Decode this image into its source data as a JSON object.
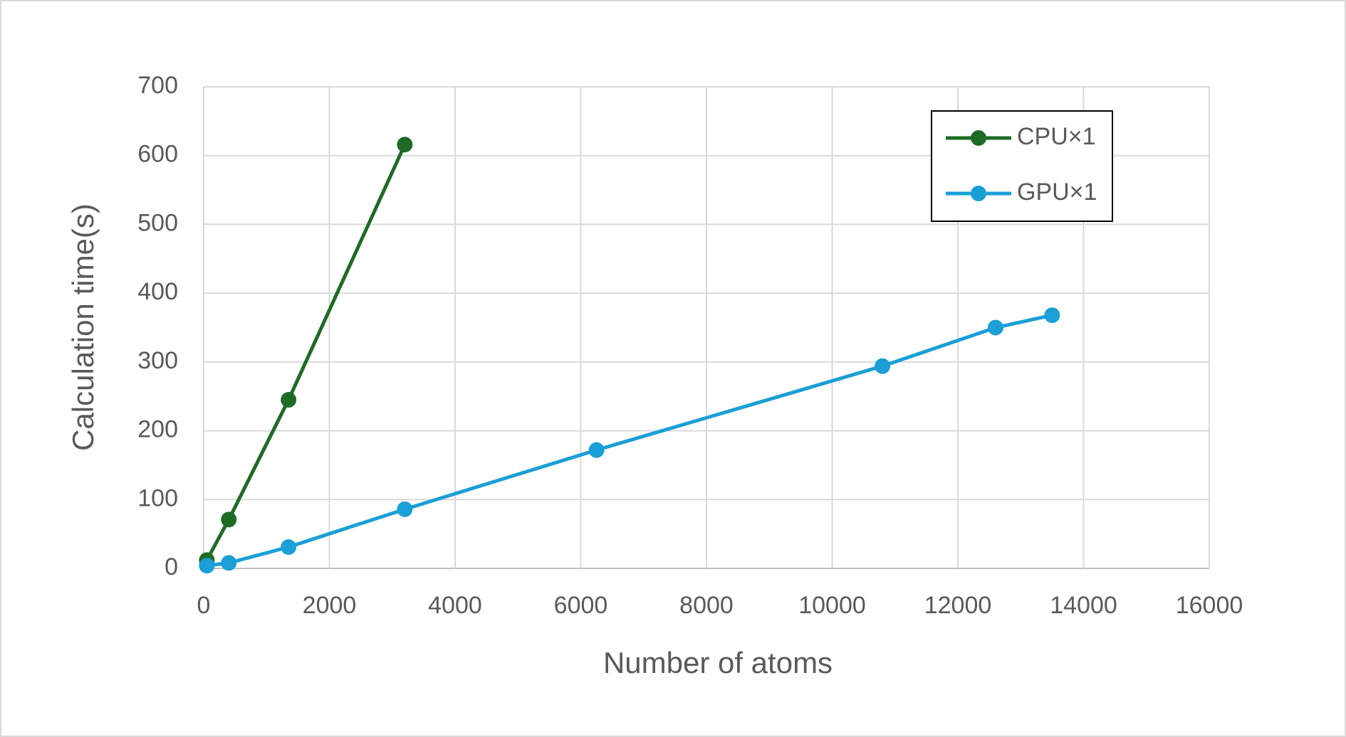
{
  "chart_data": {
    "type": "line",
    "x_label": "Number of atoms",
    "y_label": "Calculation time(s)",
    "series": [
      {
        "name": "CPU×1",
        "color": "#1e6b25",
        "x": [
          50,
          400,
          1350,
          3200
        ],
        "values": [
          12,
          71,
          245,
          616
        ]
      },
      {
        "name": "GPU×1",
        "color": "#1a9fd6",
        "x": [
          50,
          400,
          1350,
          3200,
          6250,
          10800,
          12600,
          13500
        ],
        "values": [
          4,
          8,
          31,
          86,
          172,
          294,
          350,
          368
        ]
      }
    ],
    "xlim": [
      0,
      16000
    ],
    "xticks": [
      0,
      2000,
      4000,
      6000,
      8000,
      10000,
      12000,
      14000,
      16000
    ],
    "ylim": [
      0,
      700
    ],
    "yticks": [
      0,
      100,
      200,
      300,
      400,
      500,
      600,
      700
    ],
    "grid": true,
    "legend": "upper right"
  }
}
